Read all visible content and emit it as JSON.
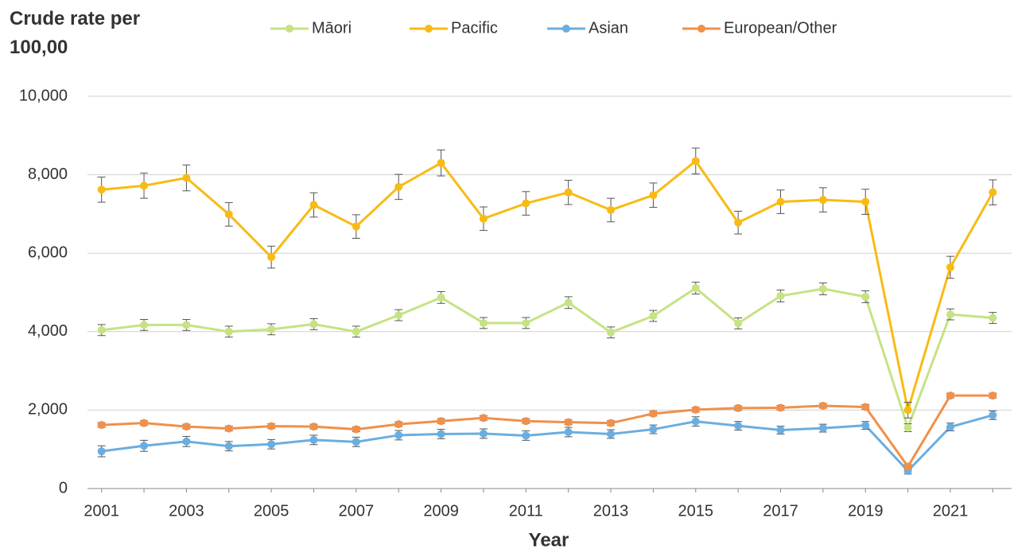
{
  "chart_data": {
    "type": "line",
    "title": "Crude rate per 100,00",
    "xlabel": "Year",
    "x": [
      2001,
      2002,
      2003,
      2004,
      2005,
      2006,
      2007,
      2008,
      2009,
      2010,
      2011,
      2012,
      2013,
      2014,
      2015,
      2016,
      2017,
      2018,
      2019,
      2020,
      2021,
      2022
    ],
    "xlim": [
      2000.5,
      2022.5
    ],
    "xticks": [
      2001,
      2003,
      2005,
      2007,
      2009,
      2011,
      2013,
      2015,
      2017,
      2019,
      2021
    ],
    "ylim": [
      0,
      10000
    ],
    "yticks": [
      0,
      {
        "value": 2000,
        "label": "2,000"
      },
      {
        "value": 4000,
        "label": "4,000"
      },
      {
        "value": 6000,
        "label": "6,000"
      },
      {
        "value": 8000,
        "label": "8,000"
      },
      {
        "value": 10000,
        "label": "10,000"
      }
    ],
    "grid": true,
    "legend": "top",
    "series": [
      {
        "name": "Māori",
        "color": "#c5e384",
        "values": [
          4040,
          4170,
          4170,
          4000,
          4060,
          4190,
          4000,
          4420,
          4870,
          4220,
          4220,
          4740,
          3980,
          4400,
          5110,
          4210,
          4910,
          5090,
          4890,
          1550,
          4440,
          4350
        ],
        "errors": [
          140,
          140,
          140,
          140,
          140,
          140,
          140,
          140,
          150,
          140,
          140,
          150,
          140,
          140,
          150,
          140,
          150,
          150,
          150,
          100,
          140,
          140
        ]
      },
      {
        "name": "Pacific",
        "color": "#f8bb14",
        "values": [
          7620,
          7720,
          7920,
          6990,
          5900,
          7230,
          6680,
          7690,
          8300,
          6880,
          7270,
          7550,
          7100,
          7480,
          8350,
          6780,
          7310,
          7360,
          7310,
          2000,
          5640,
          7550
        ],
        "errors": [
          320,
          320,
          330,
          300,
          280,
          310,
          300,
          320,
          330,
          300,
          300,
          310,
          300,
          310,
          330,
          290,
          300,
          310,
          320,
          200,
          280,
          320
        ]
      },
      {
        "name": "Asian",
        "color": "#6aaee0",
        "values": [
          950,
          1090,
          1200,
          1080,
          1130,
          1240,
          1190,
          1360,
          1390,
          1400,
          1350,
          1440,
          1390,
          1510,
          1710,
          1600,
          1490,
          1540,
          1610,
          450,
          1570,
          1870
        ],
        "errors": [
          140,
          140,
          130,
          120,
          120,
          120,
          120,
          120,
          120,
          120,
          120,
          120,
          110,
          110,
          120,
          110,
          100,
          100,
          100,
          80,
          100,
          110
        ]
      },
      {
        "name": "European/Other",
        "color": "#f0904a",
        "values": [
          1620,
          1670,
          1580,
          1530,
          1590,
          1580,
          1510,
          1640,
          1720,
          1800,
          1720,
          1690,
          1670,
          1910,
          2010,
          2050,
          2060,
          2110,
          2080,
          560,
          2370,
          2370
        ],
        "errors": [
          60,
          60,
          60,
          60,
          60,
          60,
          60,
          60,
          60,
          60,
          60,
          60,
          60,
          60,
          60,
          60,
          60,
          60,
          60,
          50,
          60,
          60
        ]
      }
    ]
  }
}
